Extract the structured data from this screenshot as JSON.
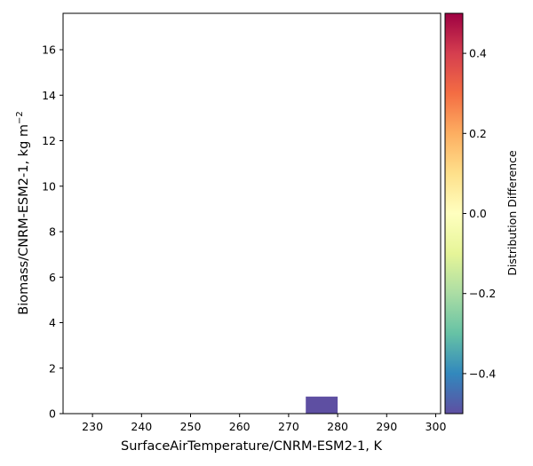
{
  "chart_data": {
    "type": "heatmap",
    "xlabel": "SurfaceAirTemperature/CNRM-ESM2-1,  K",
    "ylabel": "Biomass/CNRM-ESM2-1,  kg m",
    "ylabel_superscript": "−2",
    "xlim": [
      224,
      301
    ],
    "ylim": [
      0,
      17.6
    ],
    "xticks": [
      230,
      240,
      250,
      260,
      270,
      280,
      290,
      300
    ],
    "yticks": [
      0,
      2,
      4,
      6,
      8,
      10,
      12,
      14,
      16
    ],
    "cells": [
      {
        "x0": 273.5,
        "x1": 280,
        "y0": 0,
        "y1": 0.75,
        "value": -0.5
      }
    ],
    "colorbar": {
      "label": "Distribution Difference",
      "range": [
        -0.5,
        0.5
      ],
      "ticks": [
        0.4,
        0.2,
        0.0,
        -0.2,
        -0.4
      ],
      "tick_labels": [
        "0.4",
        "0.2",
        "0.0",
        "−0.2",
        "−0.4"
      ],
      "colormap": "Spectral_r",
      "stops": [
        "#5e4fa2",
        "#3288bd",
        "#66c2a5",
        "#abdda4",
        "#e6f598",
        "#ffffbf",
        "#fee08b",
        "#fdae61",
        "#f46d43",
        "#d53e4f",
        "#9e0142"
      ]
    }
  }
}
